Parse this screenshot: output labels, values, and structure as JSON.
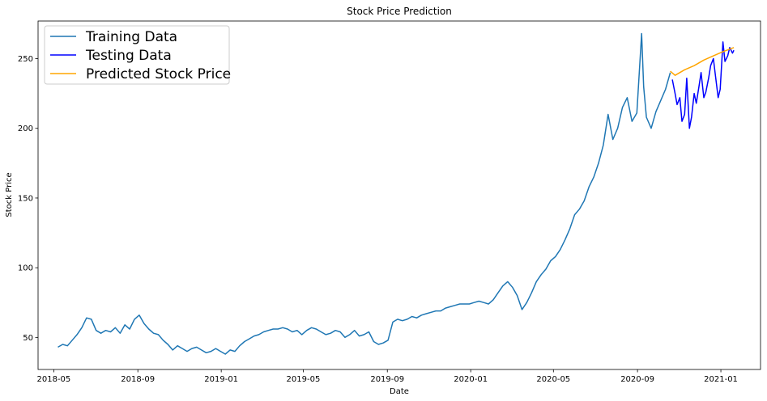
{
  "chart_data": {
    "type": "line",
    "title": "Stock Price Prediction",
    "xlabel": "Date",
    "ylabel": "Stock Price",
    "x_axis_type": "date",
    "xlim": [
      "2018-04-08",
      "2021-02-28"
    ],
    "ylim": [
      27,
      277
    ],
    "x_ticks": [
      "2018-05-01",
      "2018-09-01",
      "2019-01-01",
      "2019-05-01",
      "2019-09-01",
      "2020-01-01",
      "2020-05-01",
      "2020-09-01",
      "2021-01-01"
    ],
    "x_tick_labels": [
      "2018-05",
      "2018-09",
      "2019-01",
      "2019-05",
      "2019-09",
      "2020-01",
      "2020-05",
      "2020-09",
      "2021-01"
    ],
    "y_ticks": [
      50,
      100,
      150,
      200,
      250
    ],
    "y_tick_labels": [
      "50",
      "100",
      "150",
      "200",
      "250"
    ],
    "grid": false,
    "legend": {
      "location": "upper-left"
    },
    "series": [
      {
        "name": "Training Data",
        "color": "#1f77b4",
        "points": [
          [
            "2018-05-07",
            43
          ],
          [
            "2018-05-14",
            45
          ],
          [
            "2018-05-21",
            44
          ],
          [
            "2018-05-28",
            48
          ],
          [
            "2018-06-04",
            52
          ],
          [
            "2018-06-11",
            57
          ],
          [
            "2018-06-18",
            64
          ],
          [
            "2018-06-25",
            63
          ],
          [
            "2018-07-02",
            55
          ],
          [
            "2018-07-09",
            53
          ],
          [
            "2018-07-16",
            55
          ],
          [
            "2018-07-23",
            54
          ],
          [
            "2018-07-30",
            57
          ],
          [
            "2018-08-06",
            53
          ],
          [
            "2018-08-13",
            59
          ],
          [
            "2018-08-20",
            56
          ],
          [
            "2018-08-27",
            63
          ],
          [
            "2018-09-03",
            66
          ],
          [
            "2018-09-10",
            60
          ],
          [
            "2018-09-17",
            56
          ],
          [
            "2018-09-24",
            53
          ],
          [
            "2018-10-01",
            52
          ],
          [
            "2018-10-08",
            48
          ],
          [
            "2018-10-15",
            45
          ],
          [
            "2018-10-22",
            41
          ],
          [
            "2018-10-29",
            44
          ],
          [
            "2018-11-05",
            42
          ],
          [
            "2018-11-12",
            40
          ],
          [
            "2018-11-19",
            42
          ],
          [
            "2018-11-26",
            43
          ],
          [
            "2018-12-03",
            41
          ],
          [
            "2018-12-10",
            39
          ],
          [
            "2018-12-17",
            40
          ],
          [
            "2018-12-24",
            42
          ],
          [
            "2018-12-31",
            40
          ],
          [
            "2019-01-07",
            38
          ],
          [
            "2019-01-14",
            41
          ],
          [
            "2019-01-21",
            40
          ],
          [
            "2019-01-28",
            44
          ],
          [
            "2019-02-04",
            47
          ],
          [
            "2019-02-11",
            49
          ],
          [
            "2019-02-18",
            51
          ],
          [
            "2019-02-25",
            52
          ],
          [
            "2019-03-04",
            54
          ],
          [
            "2019-03-11",
            55
          ],
          [
            "2019-03-18",
            56
          ],
          [
            "2019-03-25",
            56
          ],
          [
            "2019-04-01",
            57
          ],
          [
            "2019-04-08",
            56
          ],
          [
            "2019-04-15",
            54
          ],
          [
            "2019-04-22",
            55
          ],
          [
            "2019-04-29",
            52
          ],
          [
            "2019-05-06",
            55
          ],
          [
            "2019-05-13",
            57
          ],
          [
            "2019-05-20",
            56
          ],
          [
            "2019-05-27",
            54
          ],
          [
            "2019-06-03",
            52
          ],
          [
            "2019-06-10",
            53
          ],
          [
            "2019-06-17",
            55
          ],
          [
            "2019-06-24",
            54
          ],
          [
            "2019-07-01",
            50
          ],
          [
            "2019-07-08",
            52
          ],
          [
            "2019-07-15",
            55
          ],
          [
            "2019-07-22",
            51
          ],
          [
            "2019-07-29",
            52
          ],
          [
            "2019-08-05",
            54
          ],
          [
            "2019-08-12",
            47
          ],
          [
            "2019-08-19",
            45
          ],
          [
            "2019-08-26",
            46
          ],
          [
            "2019-09-02",
            48
          ],
          [
            "2019-09-09",
            61
          ],
          [
            "2019-09-16",
            63
          ],
          [
            "2019-09-23",
            62
          ],
          [
            "2019-09-30",
            63
          ],
          [
            "2019-10-07",
            65
          ],
          [
            "2019-10-14",
            64
          ],
          [
            "2019-10-21",
            66
          ],
          [
            "2019-10-28",
            67
          ],
          [
            "2019-11-04",
            68
          ],
          [
            "2019-11-11",
            69
          ],
          [
            "2019-11-18",
            69
          ],
          [
            "2019-11-25",
            71
          ],
          [
            "2019-12-02",
            72
          ],
          [
            "2019-12-09",
            73
          ],
          [
            "2019-12-16",
            74
          ],
          [
            "2019-12-23",
            74
          ],
          [
            "2019-12-30",
            74
          ],
          [
            "2020-01-06",
            75
          ],
          [
            "2020-01-13",
            76
          ],
          [
            "2020-01-20",
            75
          ],
          [
            "2020-01-27",
            74
          ],
          [
            "2020-02-03",
            77
          ],
          [
            "2020-02-10",
            82
          ],
          [
            "2020-02-17",
            87
          ],
          [
            "2020-02-24",
            90
          ],
          [
            "2020-03-02",
            86
          ],
          [
            "2020-03-09",
            80
          ],
          [
            "2020-03-16",
            70
          ],
          [
            "2020-03-23",
            75
          ],
          [
            "2020-03-30",
            82
          ],
          [
            "2020-04-06",
            90
          ],
          [
            "2020-04-13",
            95
          ],
          [
            "2020-04-20",
            99
          ],
          [
            "2020-04-27",
            105
          ],
          [
            "2020-05-04",
            108
          ],
          [
            "2020-05-11",
            113
          ],
          [
            "2020-05-18",
            120
          ],
          [
            "2020-05-25",
            128
          ],
          [
            "2020-06-01",
            138
          ],
          [
            "2020-06-08",
            142
          ],
          [
            "2020-06-15",
            148
          ],
          [
            "2020-06-22",
            158
          ],
          [
            "2020-06-29",
            165
          ],
          [
            "2020-07-06",
            175
          ],
          [
            "2020-07-13",
            188
          ],
          [
            "2020-07-20",
            210
          ],
          [
            "2020-07-27",
            192
          ],
          [
            "2020-08-03",
            200
          ],
          [
            "2020-08-10",
            215
          ],
          [
            "2020-08-17",
            222
          ],
          [
            "2020-08-24",
            205
          ],
          [
            "2020-08-31",
            211
          ],
          [
            "2020-09-07",
            268
          ],
          [
            "2020-09-10",
            230
          ],
          [
            "2020-09-14",
            208
          ],
          [
            "2020-09-21",
            200
          ],
          [
            "2020-09-28",
            212
          ],
          [
            "2020-10-05",
            220
          ],
          [
            "2020-10-12",
            228
          ],
          [
            "2020-10-19",
            240
          ]
        ]
      },
      {
        "name": "Testing Data",
        "color": "#0000ff",
        "points": [
          [
            "2020-10-22",
            235
          ],
          [
            "2020-10-26",
            225
          ],
          [
            "2020-10-29",
            217
          ],
          [
            "2020-11-02",
            222
          ],
          [
            "2020-11-05",
            205
          ],
          [
            "2020-11-09",
            210
          ],
          [
            "2020-11-12",
            236
          ],
          [
            "2020-11-16",
            200
          ],
          [
            "2020-11-19",
            208
          ],
          [
            "2020-11-23",
            225
          ],
          [
            "2020-11-26",
            218
          ],
          [
            "2020-11-30",
            230
          ],
          [
            "2020-12-03",
            240
          ],
          [
            "2020-12-07",
            222
          ],
          [
            "2020-12-10",
            226
          ],
          [
            "2020-12-14",
            236
          ],
          [
            "2020-12-17",
            245
          ],
          [
            "2020-12-21",
            250
          ],
          [
            "2020-12-24",
            238
          ],
          [
            "2020-12-28",
            222
          ],
          [
            "2020-12-31",
            228
          ],
          [
            "2021-01-04",
            262
          ],
          [
            "2021-01-07",
            248
          ],
          [
            "2021-01-11",
            252
          ],
          [
            "2021-01-14",
            258
          ],
          [
            "2021-01-18",
            254
          ],
          [
            "2021-01-20",
            256
          ]
        ]
      },
      {
        "name": "Predicted Stock Price",
        "color": "#ffa500",
        "points": [
          [
            "2020-10-19",
            241
          ],
          [
            "2020-10-26",
            238
          ],
          [
            "2020-11-09",
            242
          ],
          [
            "2020-11-23",
            245
          ],
          [
            "2020-12-07",
            249
          ],
          [
            "2020-12-21",
            252
          ],
          [
            "2021-01-04",
            255
          ],
          [
            "2021-01-20",
            258
          ]
        ]
      }
    ]
  }
}
